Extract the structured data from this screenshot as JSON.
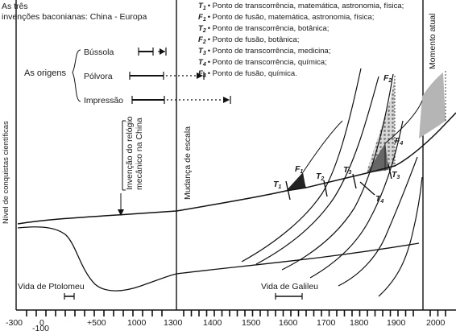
{
  "title": {
    "line1": "As três",
    "line2": "invenções baconianas: China - Europa"
  },
  "legend": [
    {
      "sym": "T",
      "sub": "1",
      "text": "• Ponto de transcorrência, matemática, astronomia, física;"
    },
    {
      "sym": "F",
      "sub": "1",
      "text": "• Ponto de fusão, matemática, astronomia, física;"
    },
    {
      "sym": "T",
      "sub": "2",
      "text": "• Ponto de transcorrência, botânica;"
    },
    {
      "sym": "F",
      "sub": "2",
      "text": "• Ponto de fusão, botânica;"
    },
    {
      "sym": "T",
      "sub": "3",
      "text": "• Ponto de transcorrência, medicina;"
    },
    {
      "sym": "T",
      "sub": "4",
      "text": "• Ponto de transcorrência, química;"
    },
    {
      "sym": "F",
      "sub": "4",
      "text": "• Ponto de fusão, química."
    }
  ],
  "origins": {
    "label": "As origens",
    "items": [
      "Bússola",
      "Pólvora",
      "Impressão"
    ]
  },
  "labels": {
    "yaxis": "Nível de conquistas científicas",
    "clock_line1": "Invenção do relógio",
    "clock_line2": "mecânico na China",
    "scale_change": "Mudança de escala",
    "current_moment": "Momento atual",
    "ptolomeu": "Vida de Ptolomeu",
    "galileu": "Vida de Galileu"
  },
  "points": {
    "T1": {
      "sym": "T",
      "sub": "1"
    },
    "F1": {
      "sym": "F",
      "sub": "1"
    },
    "T2": {
      "sym": "T",
      "sub": "2"
    },
    "F2": {
      "sym": "F",
      "sub": "2"
    },
    "T3a": {
      "sym": "T",
      "sub": "3"
    },
    "T3b": {
      "sym": "T",
      "sub": "3"
    },
    "T4": {
      "sym": "T",
      "sub": "4"
    },
    "F4": {
      "sym": "F",
      "sub": "4"
    }
  },
  "xaxis": {
    "ticks": [
      "-300",
      "0",
      "+500",
      "1000",
      "1300",
      "1400",
      "1500",
      "1600",
      "1700",
      "1800",
      "1900",
      "2000"
    ],
    "extra_tick": "-100"
  }
}
